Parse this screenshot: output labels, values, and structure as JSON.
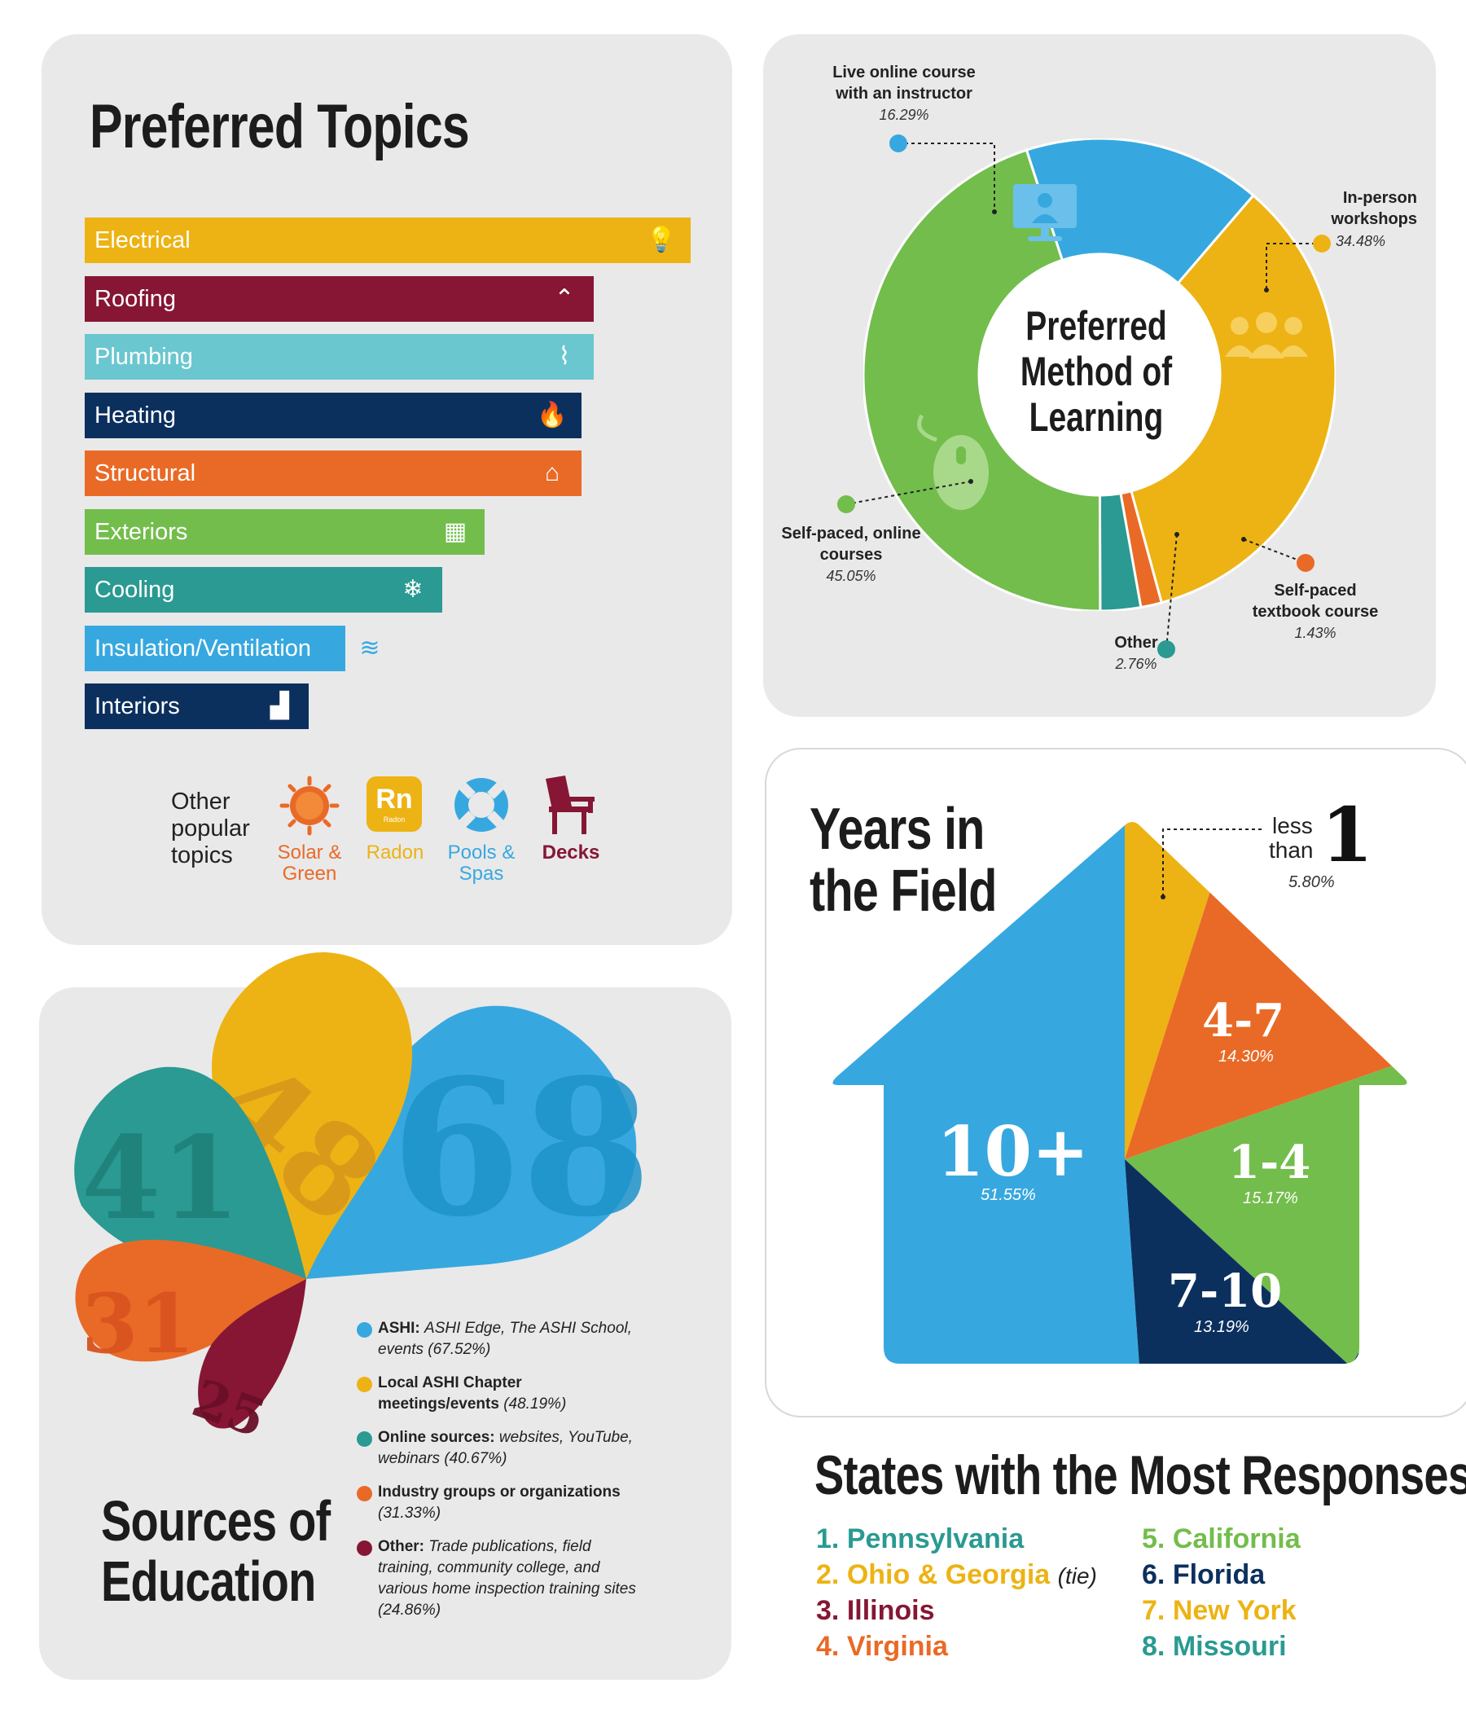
{
  "topics": {
    "title": "Preferred Topics",
    "bars": [
      {
        "label": "Electrical",
        "color": "#edb314",
        "icon": "lightbulb-icon"
      },
      {
        "label": "Roofing",
        "color": "#861634",
        "icon": "roof-icon"
      },
      {
        "label": "Plumbing",
        "color": "#6ac7cf",
        "icon": "pipe-icon"
      },
      {
        "label": "Heating",
        "color": "#0c305e",
        "icon": "flame-icon"
      },
      {
        "label": "Structural",
        "color": "#e96a26",
        "icon": "house-structure-icon"
      },
      {
        "label": "Exteriors",
        "color": "#73bd4c",
        "icon": "window-icon"
      },
      {
        "label": "Cooling",
        "color": "#2a9a92",
        "icon": "snowflake-icon"
      },
      {
        "label": "Insulation/Ventilation",
        "color": "#37a8df",
        "icon": "wind-icon"
      },
      {
        "label": "Interiors",
        "color": "#0c305e",
        "icon": "stairs-icon"
      }
    ],
    "other_label": "Other popular topics",
    "other_items": [
      {
        "label": "Solar & Green",
        "color": "#e96a26",
        "icon": "sun-icon"
      },
      {
        "label": "Radon",
        "color": "#edb314",
        "icon": "radon-icon",
        "badge": "Rn",
        "badge_sub": "Radon"
      },
      {
        "label": "Pools & Spas",
        "color": "#37a8df",
        "icon": "life-ring-icon"
      },
      {
        "label": "Decks",
        "color": "#861634",
        "icon": "deck-chair-icon"
      }
    ]
  },
  "learning": {
    "title_lines": [
      "Preferred",
      "Method of",
      "Learning"
    ],
    "labels": {
      "live": {
        "name": "Live online course with an instructor",
        "pct": "16.29%"
      },
      "inperson": {
        "name": "In-person workshops",
        "pct": "34.48%"
      },
      "selfpaced": {
        "name": "Self-paced, online courses",
        "pct": "45.05%"
      },
      "textbook": {
        "name": "Self-paced textbook course",
        "pct": "1.43%"
      },
      "other": {
        "name": "Other",
        "pct": "2.76%"
      }
    }
  },
  "years": {
    "title_lines": [
      "Years in",
      "the Field"
    ],
    "lt1_word1": "less",
    "lt1_word2": "than",
    "lt1_num": "1",
    "lt1_pct": "5.80%",
    "s47": {
      "label": "4-7",
      "pct": "14.30%"
    },
    "s14": {
      "label": "1-4",
      "pct": "15.17%"
    },
    "s710": {
      "label": "7-10",
      "pct": "13.19%"
    },
    "s10": {
      "label": "10+",
      "pct": "51.55%"
    }
  },
  "education": {
    "title_lines": [
      "Sources of",
      "Education"
    ],
    "petal_numbers": {
      "asHI": "68",
      "chapter": "48",
      "online": "41",
      "industry": "31",
      "other": "25"
    },
    "legend": [
      {
        "bold": "ASHI:",
        "text": "ASHI Edge, The ASHI School, events (67.52%)",
        "color": "#37a8df"
      },
      {
        "bold": "Local ASHI Chapter meetings/events",
        "text": "(48.19%)",
        "color": "#edb314"
      },
      {
        "bold": "Online sources:",
        "text": "websites, YouTube, webinars (40.67%)",
        "color": "#2a9a92"
      },
      {
        "bold": "Industry groups or organizations",
        "text": "(31.33%)",
        "color": "#e96a26"
      },
      {
        "bold": "Other:",
        "text": "Trade publications, field training, community college, and various home inspection training sites (24.86%)",
        "color": "#861634"
      }
    ]
  },
  "states": {
    "title": "States with the Most Responses",
    "left": [
      {
        "rank": "1.",
        "name": "Pennsylvania",
        "color": "#2a9a92",
        "suffix": ""
      },
      {
        "rank": "2.",
        "name": "Ohio & Georgia",
        "color": "#edb314",
        "suffix": "(tie)"
      },
      {
        "rank": "3.",
        "name": "Illinois",
        "color": "#861634",
        "suffix": ""
      },
      {
        "rank": "4.",
        "name": "Virginia",
        "color": "#e96a26",
        "suffix": ""
      }
    ],
    "right": [
      {
        "rank": "5.",
        "name": "California",
        "color": "#73bd4c"
      },
      {
        "rank": "6.",
        "name": "Florida",
        "color": "#0c305e"
      },
      {
        "rank": "7.",
        "name": "New York",
        "color": "#edb314"
      },
      {
        "rank": "8.",
        "name": "Missouri",
        "color": "#2a9a92"
      }
    ]
  },
  "chart_data": [
    {
      "type": "bar",
      "title": "Preferred Topics",
      "categories": [
        "Electrical",
        "Roofing",
        "Plumbing",
        "Heating",
        "Structural",
        "Exteriors",
        "Cooling",
        "Insulation/Ventilation",
        "Interiors"
      ],
      "values": [
        100,
        84,
        84,
        82,
        82,
        66,
        59,
        43,
        37
      ]
    },
    {
      "type": "pie",
      "title": "Preferred Method of Learning",
      "categories": [
        "Live online course with an instructor",
        "In-person workshops",
        "Self-paced textbook course",
        "Other",
        "Self-paced, online courses"
      ],
      "values": [
        16.29,
        34.48,
        1.43,
        2.76,
        45.05
      ],
      "colors": [
        "#37a8df",
        "#edb314",
        "#e96a26",
        "#2a9a92",
        "#73bd4c"
      ]
    },
    {
      "type": "pie",
      "title": "Years in the Field",
      "categories": [
        "less than 1",
        "4-7",
        "1-4",
        "7-10",
        "10+"
      ],
      "values": [
        5.8,
        14.3,
        15.17,
        13.19,
        51.55
      ],
      "colors": [
        "#edb314",
        "#e96a26",
        "#73bd4c",
        "#0c305e",
        "#37a8df"
      ]
    },
    {
      "type": "pie",
      "title": "Sources of Education",
      "categories": [
        "ASHI",
        "Local ASHI Chapter meetings/events",
        "Online sources",
        "Industry groups or organizations",
        "Other"
      ],
      "values": [
        67.52,
        48.19,
        40.67,
        31.33,
        24.86
      ],
      "colors": [
        "#37a8df",
        "#edb314",
        "#2a9a92",
        "#e96a26",
        "#861634"
      ]
    }
  ]
}
